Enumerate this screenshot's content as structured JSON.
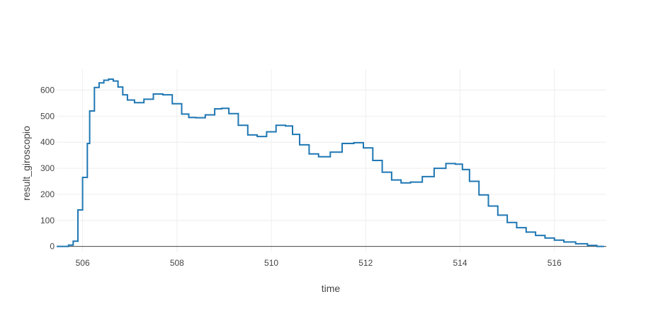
{
  "chart_data": {
    "type": "line",
    "line_shape": "step",
    "xlabel": "time",
    "ylabel": "result_giroscopio",
    "xlim": [
      505.45,
      517.1
    ],
    "ylim": [
      -20,
      680
    ],
    "x_ticks": [
      506,
      508,
      510,
      512,
      514,
      516
    ],
    "y_ticks": [
      0,
      100,
      200,
      300,
      400,
      500,
      600
    ],
    "grid": true,
    "line_color": "#1f77b4",
    "zero_line_color": "#444444",
    "series": [
      {
        "x": [
          505.45,
          505.7,
          505.8,
          505.9,
          506.0,
          506.1,
          506.15,
          506.25,
          506.35,
          506.45,
          506.55,
          506.65,
          506.75,
          506.85,
          506.95,
          507.1,
          507.3,
          507.5,
          507.7,
          507.9,
          508.1,
          508.25,
          508.4,
          508.6,
          508.8,
          508.95,
          509.1,
          509.3,
          509.5,
          509.7,
          509.9,
          510.1,
          510.3,
          510.45,
          510.6,
          510.8,
          511.0,
          511.25,
          511.5,
          511.75,
          511.95,
          512.15,
          512.35,
          512.55,
          512.75,
          512.95,
          513.2,
          513.45,
          513.7,
          513.9,
          514.05,
          514.2,
          514.4,
          514.6,
          514.8,
          515.0,
          515.2,
          515.4,
          515.6,
          515.8,
          516.0,
          516.2,
          516.45,
          516.7,
          516.9,
          517.05
        ],
        "y": [
          0,
          5,
          20,
          140,
          265,
          395,
          520,
          610,
          628,
          638,
          642,
          635,
          612,
          582,
          562,
          552,
          565,
          585,
          582,
          548,
          508,
          495,
          494,
          505,
          528,
          530,
          510,
          465,
          428,
          422,
          440,
          465,
          462,
          430,
          390,
          355,
          344,
          362,
          395,
          398,
          378,
          330,
          285,
          255,
          244,
          247,
          268,
          300,
          318,
          316,
          295,
          250,
          198,
          155,
          120,
          92,
          72,
          55,
          42,
          32,
          24,
          17,
          10,
          4,
          0,
          0
        ]
      }
    ]
  }
}
